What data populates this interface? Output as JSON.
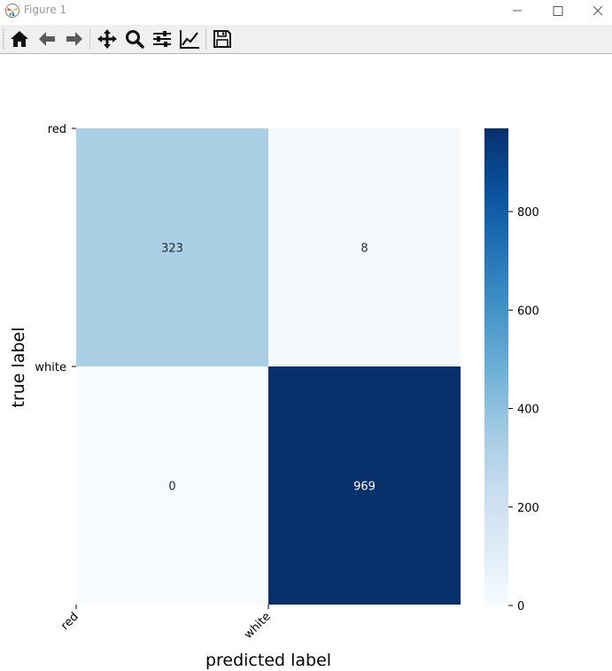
{
  "window": {
    "title": "Figure 1"
  },
  "toolbar": {
    "buttons": [
      {
        "name": "home-button",
        "icon": "home-icon"
      },
      {
        "name": "back-button",
        "icon": "arrow-left-icon"
      },
      {
        "name": "forward-button",
        "icon": "arrow-right-icon"
      },
      {
        "name": "pan-button",
        "icon": "move-arrows-icon"
      },
      {
        "name": "zoom-button",
        "icon": "magnifier-icon"
      },
      {
        "name": "subplots-button",
        "icon": "sliders-icon"
      },
      {
        "name": "edit-axes-button",
        "icon": "line-chart-icon"
      },
      {
        "name": "save-button",
        "icon": "floppy-disk-icon"
      }
    ]
  },
  "chart_data": {
    "type": "heatmap",
    "x_categories": [
      "red",
      "white"
    ],
    "y_categories": [
      "red",
      "white"
    ],
    "values": [
      [
        323,
        8
      ],
      [
        0,
        969
      ]
    ],
    "xlabel": "predicted label",
    "ylabel": "true label",
    "colormap": "Blues",
    "colorbar": {
      "range": [
        0,
        969
      ],
      "ticks": [
        0,
        200,
        400,
        600,
        800
      ]
    },
    "annotations": true
  }
}
